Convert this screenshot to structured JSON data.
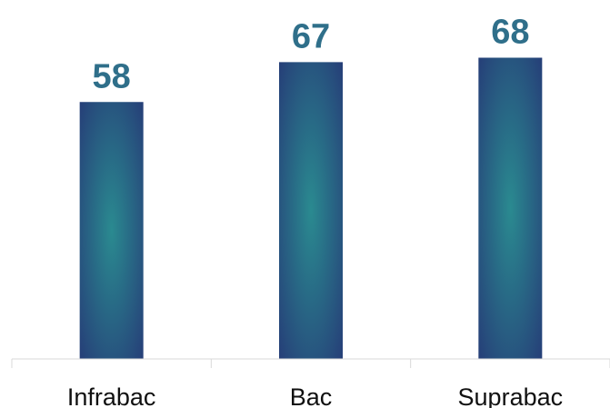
{
  "chart_data": {
    "type": "bar",
    "categories": [
      "Infrabac",
      "Bac",
      "Suprabac"
    ],
    "values": [
      58,
      67,
      68
    ],
    "title": "",
    "xlabel": "",
    "ylabel": "",
    "ylim": [
      0,
      80
    ],
    "grid": false,
    "legend": "none",
    "data_labels": [
      "58",
      "67",
      "68"
    ],
    "colors": {
      "bar_center": "#2a8a90",
      "bar_edge": "#263f78",
      "label": "#2f6f8a",
      "axis": "#d9d9d9",
      "tick_text": "#111111"
    }
  }
}
